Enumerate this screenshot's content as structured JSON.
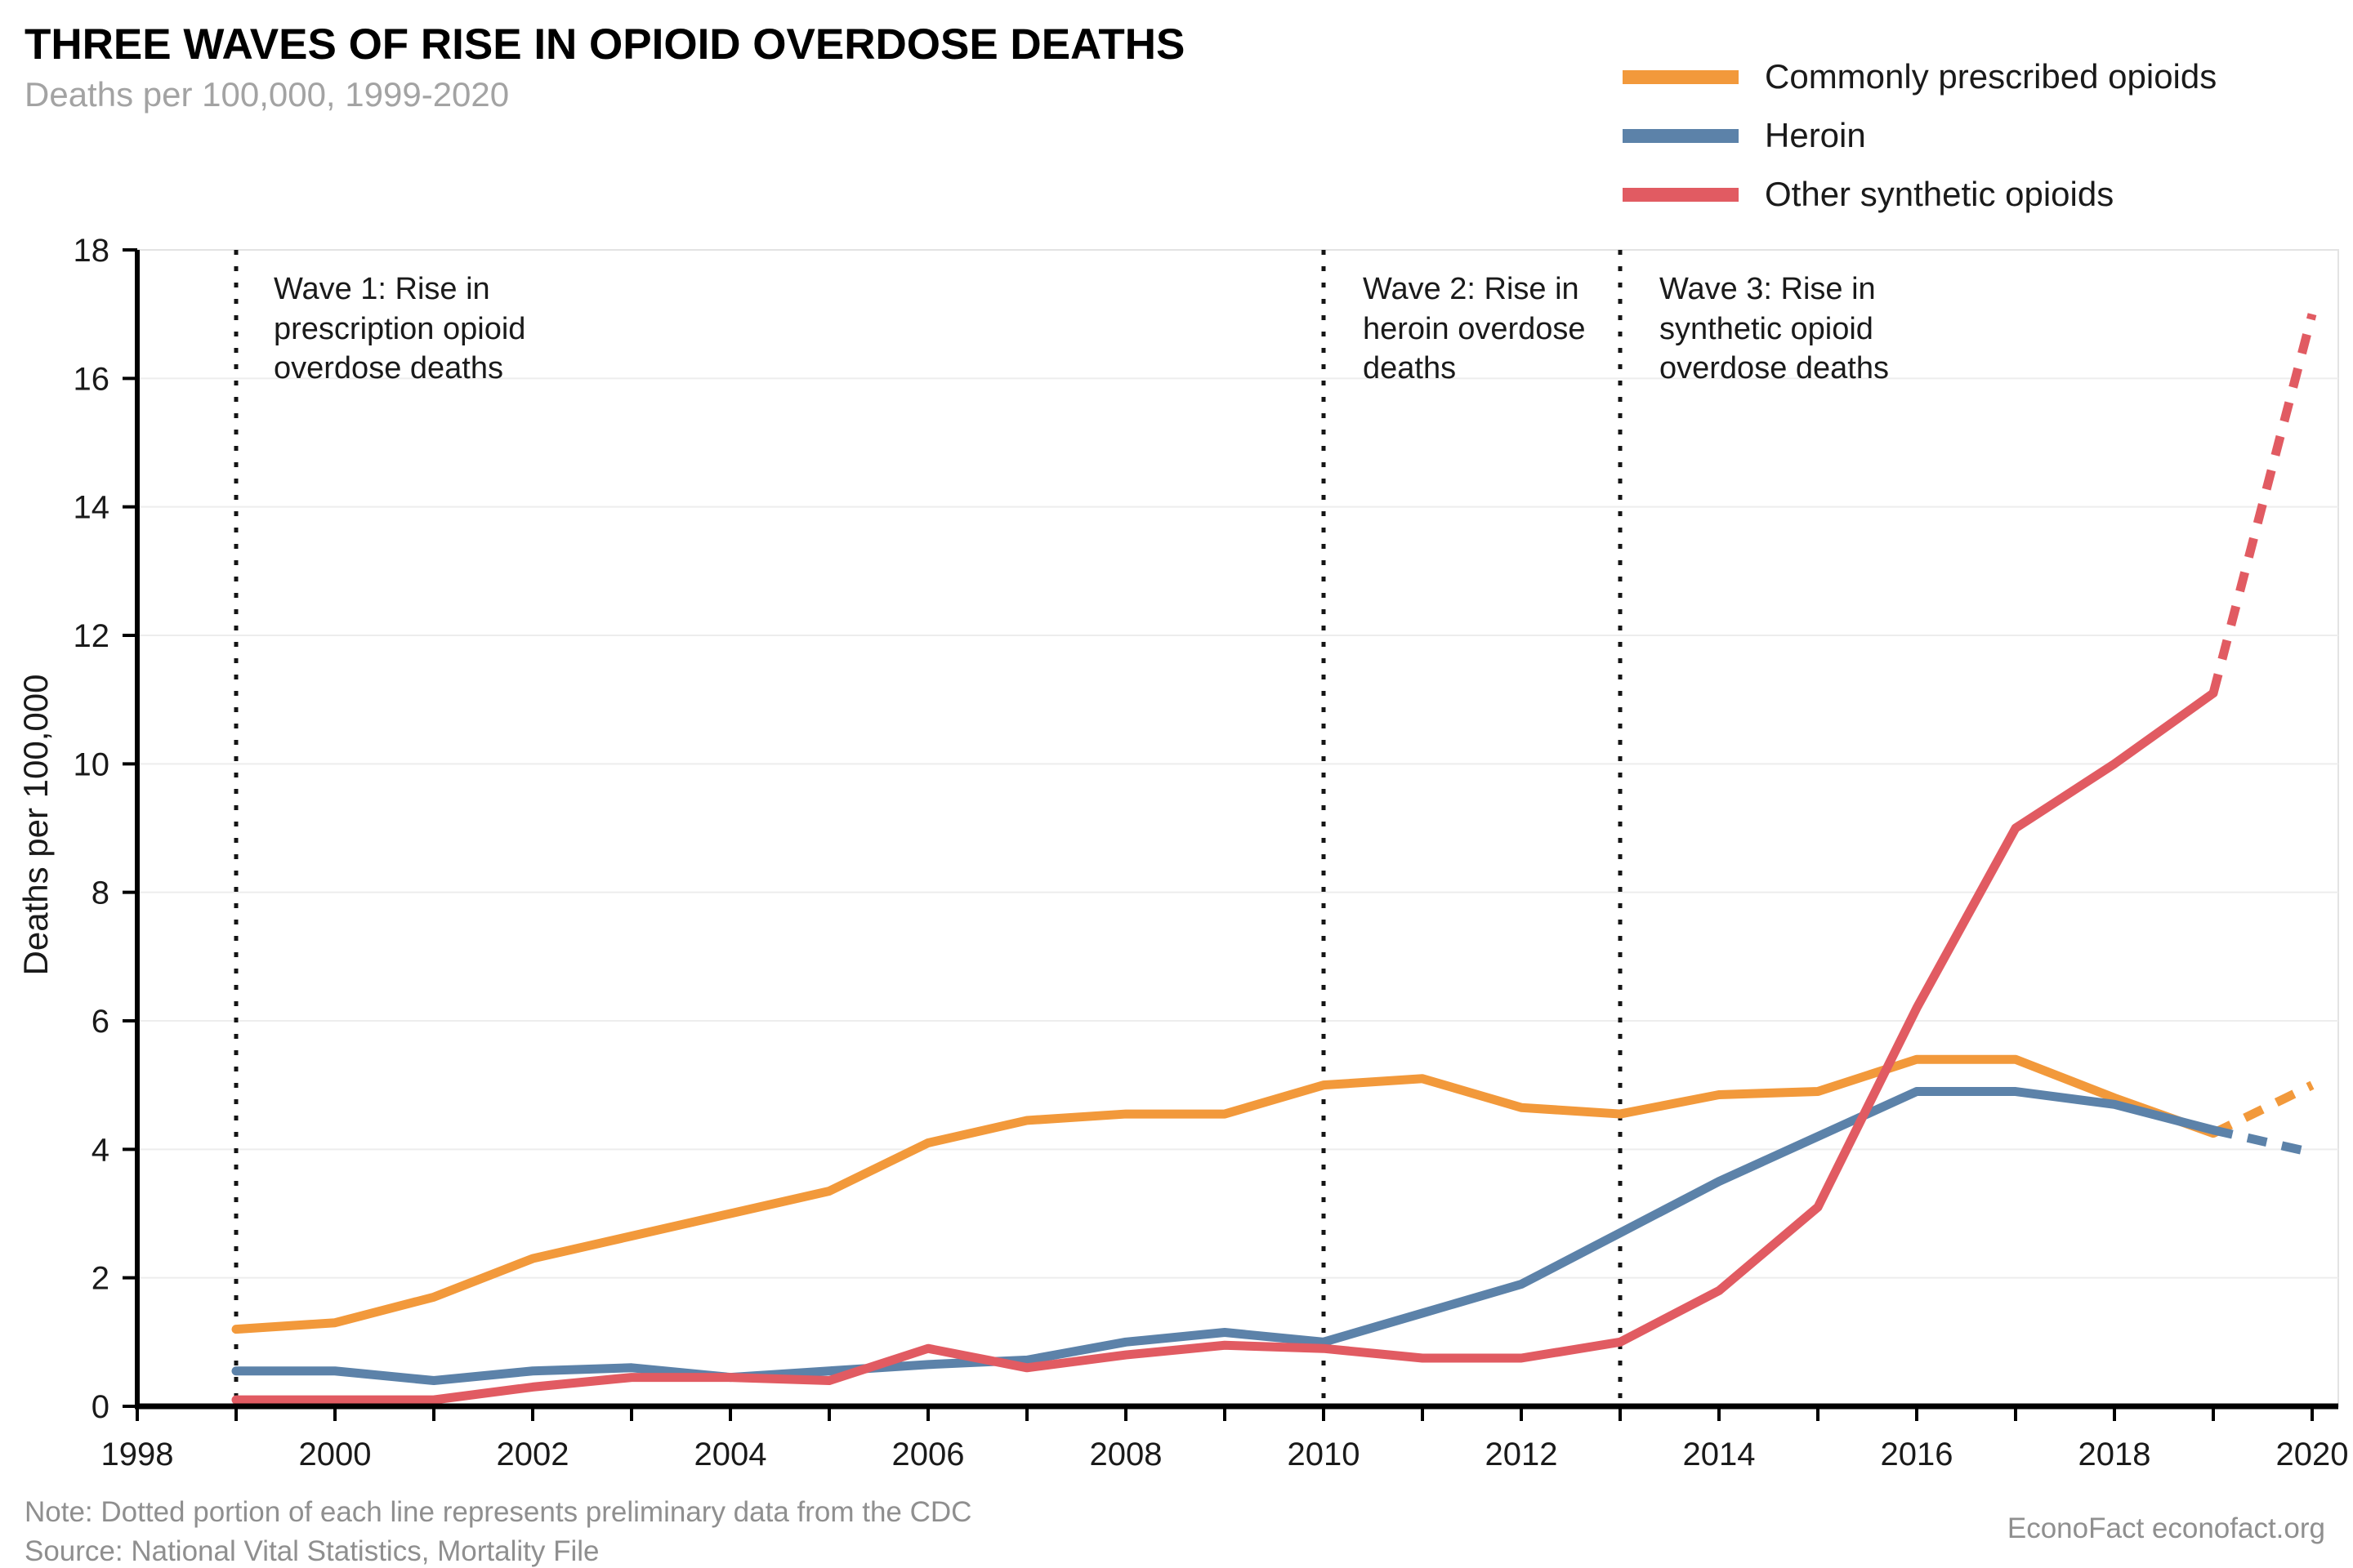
{
  "header": {
    "title": "THREE WAVES OF RISE IN OPIOID OVERDOSE DEATHS",
    "subtitle": "Deaths per 100,000, 1999-2020"
  },
  "legend": {
    "items": [
      {
        "label": "Commonly prescribed opioids",
        "color": "#F2993B"
      },
      {
        "label": "Heroin",
        "color": "#5C82A9"
      },
      {
        "label": "Other synthetic opioids",
        "color": "#E15B62"
      }
    ]
  },
  "annotations": [
    {
      "id": "wave-1",
      "year": 1999,
      "text": "Wave 1: Rise in\nprescription opioid\noverdose deaths"
    },
    {
      "id": "wave-2",
      "year": 2010,
      "text": "Wave 2: Rise in\nheroin overdose\ndeaths"
    },
    {
      "id": "wave-3",
      "year": 2013,
      "text": "Wave 3: Rise in\nsynthetic opioid\noverdose deaths"
    }
  ],
  "footer": {
    "note": "Note: Dotted portion of each line represents preliminary data from the CDC",
    "source": "Source: National Vital Statistics, Mortality File",
    "credit": "EconoFact econofact.org"
  },
  "chart_data": {
    "type": "line",
    "title": "THREE WAVES OF RISE IN OPIOID OVERDOSE DEATHS",
    "subtitle": "Deaths per 100,000, 1999-2020",
    "xlabel": "",
    "ylabel": "Deaths per 100,000",
    "x": [
      1999,
      2000,
      2001,
      2002,
      2003,
      2004,
      2005,
      2006,
      2007,
      2008,
      2009,
      2010,
      2011,
      2012,
      2013,
      2014,
      2015,
      2016,
      2017,
      2018,
      2019,
      2020
    ],
    "xticks": [
      1998,
      2000,
      2002,
      2004,
      2006,
      2008,
      2010,
      2012,
      2014,
      2016,
      2018,
      2020
    ],
    "yticks": [
      0,
      2,
      4,
      6,
      8,
      10,
      12,
      14,
      16,
      18
    ],
    "xlim": [
      1998,
      2020.3
    ],
    "ylim": [
      0,
      18
    ],
    "grid": "horizontal",
    "legend_position": "top-right",
    "preliminary_dotted_from_year": 2019,
    "vlines": [
      {
        "year": 1999,
        "label": "Wave 1: Rise in prescription opioid overdose deaths"
      },
      {
        "year": 2010,
        "label": "Wave 2: Rise in heroin overdose deaths"
      },
      {
        "year": 2013,
        "label": "Wave 3: Rise in synthetic opioid overdose deaths"
      }
    ],
    "series": [
      {
        "name": "Commonly prescribed opioids",
        "color": "#F2993B",
        "values": [
          1.2,
          1.3,
          1.7,
          2.3,
          2.65,
          3.0,
          3.35,
          4.1,
          4.45,
          4.55,
          4.55,
          5.0,
          5.1,
          4.65,
          4.55,
          4.85,
          4.9,
          5.4,
          5.4,
          4.8,
          4.25,
          5.0
        ]
      },
      {
        "name": "Heroin",
        "color": "#5C82A9",
        "values": [
          0.55,
          0.55,
          0.4,
          0.55,
          0.6,
          0.45,
          0.55,
          0.65,
          0.72,
          1.0,
          1.15,
          1.0,
          1.45,
          1.9,
          2.7,
          3.5,
          4.2,
          4.9,
          4.9,
          4.7,
          4.3,
          3.95
        ]
      },
      {
        "name": "Other synthetic opioids",
        "color": "#E15B62",
        "values": [
          0.1,
          0.1,
          0.1,
          0.3,
          0.45,
          0.45,
          0.4,
          0.9,
          0.6,
          0.8,
          0.95,
          0.9,
          0.75,
          0.75,
          1.0,
          1.8,
          3.1,
          6.2,
          9.0,
          10.0,
          11.1,
          17.0
        ]
      }
    ]
  }
}
